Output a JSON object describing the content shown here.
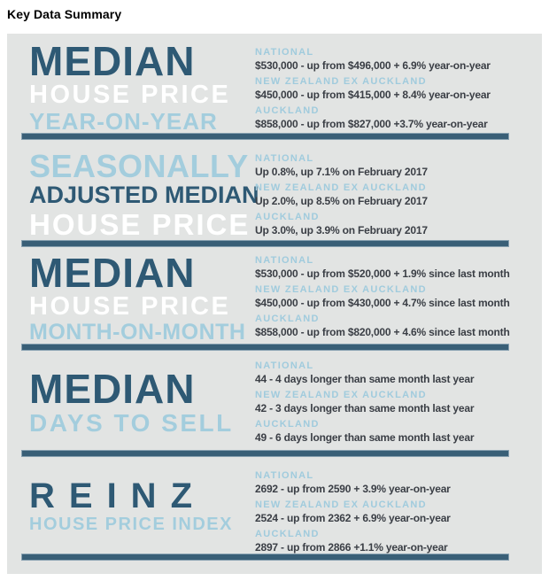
{
  "page": {
    "title": "Key Data Summary"
  },
  "colors": {
    "panel_bg": "#e2e4e3",
    "title_dark_blue": "#2e5974",
    "title_light_blue": "#a3cddd",
    "title_white": "#ffffff",
    "label_light_blue": "#a0cbdd",
    "value_text": "#3a3e45",
    "divider": "#395f77"
  },
  "sections": [
    {
      "id": "median-house-price-year-on-year",
      "title_lines": [
        {
          "text": "MEDIAN"
        },
        {
          "text": "HOUSE PRICE"
        },
        {
          "text": "YEAR-ON-YEAR"
        }
      ],
      "stats": [
        {
          "label": "NATIONAL",
          "value": "$530,000 - up from $496,000 + 6.9% year-on-year"
        },
        {
          "label": "NEW ZEALAND EX AUCKLAND",
          "value": "$450,000 - up from $415,000 + 8.4% year-on-year"
        },
        {
          "label": "AUCKLAND",
          "value": "$858,000 - up from $827,000 +3.7% year-on-year"
        }
      ]
    },
    {
      "id": "seasonally-adjusted-median-house-price",
      "title_lines": [
        {
          "text": "SEASONALLY"
        },
        {
          "text": "ADJUSTED MEDIAN"
        },
        {
          "text": "HOUSE PRICE"
        }
      ],
      "stats": [
        {
          "label": "NATIONAL",
          "value": "Up 0.8%, up 7.1% on February 2017"
        },
        {
          "label": "NEW ZEALAND EX AUCKLAND",
          "value": "Up 2.0%, up 8.5% on February 2017"
        },
        {
          "label": "AUCKLAND",
          "value": "Up 3.0%, up 3.9% on February 2017"
        }
      ]
    },
    {
      "id": "median-house-price-month-on-month",
      "title_lines": [
        {
          "text": "MEDIAN"
        },
        {
          "text": "HOUSE PRICE"
        },
        {
          "text": "MONTH-ON-MONTH"
        }
      ],
      "stats": [
        {
          "label": "NATIONAL",
          "value": "$530,000 - up from $520,000 + 1.9% since last month"
        },
        {
          "label": "NEW ZEALAND EX AUCKLAND",
          "value": "$450,000 - up from $430,000 + 4.7% since last month"
        },
        {
          "label": "AUCKLAND",
          "value": "$858,000 - up from $820,000 + 4.6% since last month"
        }
      ]
    },
    {
      "id": "median-days-to-sell",
      "title_lines": [
        {
          "text": "MEDIAN"
        },
        {
          "text": "DAYS TO SELL"
        }
      ],
      "stats": [
        {
          "label": "NATIONAL",
          "value": "44 -  4 days longer than same month last year"
        },
        {
          "label": "NEW ZEALAND EX AUCKLAND",
          "value": "42 -  3 days longer than same month last year"
        },
        {
          "label": "AUCKLAND",
          "value": "49 -  6 days longer than same month last year"
        }
      ]
    },
    {
      "id": "reinz-house-price-index",
      "title_lines": [
        {
          "text": "REINZ"
        },
        {
          "text": "HOUSE PRICE INDEX"
        }
      ],
      "stats": [
        {
          "label": "NATIONAL",
          "value": "2692 - up from 2590 + 3.9% year-on-year"
        },
        {
          "label": "NEW ZEALAND EX AUCKLAND",
          "value": "2524 - up from 2362 + 6.9% year-on-year"
        },
        {
          "label": "AUCKLAND",
          "value": "2897 - up from 2866 +1.1% year-on-year"
        }
      ]
    }
  ]
}
